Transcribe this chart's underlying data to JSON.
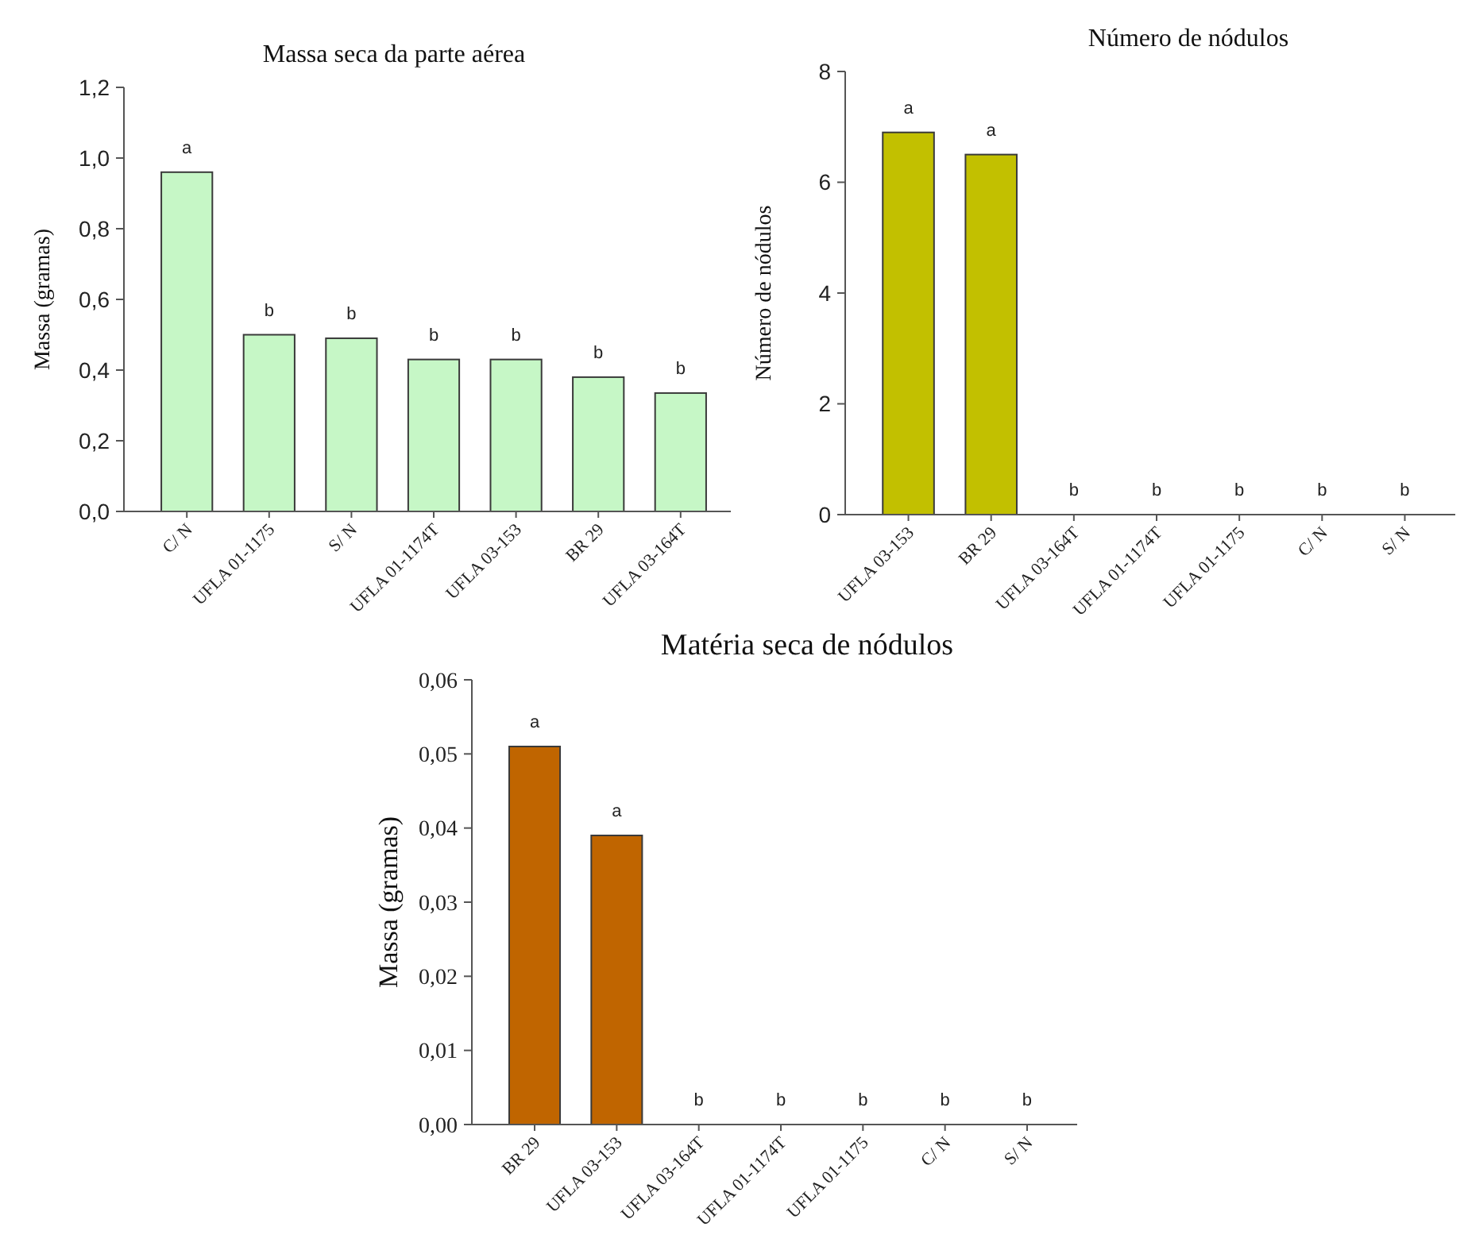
{
  "chart_data": [
    {
      "type": "bar",
      "title": "Massa seca  da parte aérea",
      "ylabel": "Massa (gramas)",
      "categories": [
        "C/ N",
        "UFLA 01-1175",
        "S/ N",
        "UFLA 01-1174T",
        "UFLA 03-153",
        "BR 29",
        "UFLA 03-164T"
      ],
      "values": [
        0.96,
        0.5,
        0.49,
        0.43,
        0.43,
        0.38,
        0.335
      ],
      "color": "#c6f7c6",
      "value_labels": [
        "a",
        "b",
        "b",
        "b",
        "b",
        "b",
        "b"
      ],
      "ylim": [
        0,
        1.2
      ],
      "yticks": [
        {
          "value": 0,
          "label": "0,0"
        },
        {
          "value": 0.2,
          "label": "0,2"
        },
        {
          "value": 0.4,
          "label": "0,4"
        },
        {
          "value": 0.6,
          "label": "0,6"
        },
        {
          "value": 0.8,
          "label": "0,8"
        },
        {
          "value": 1,
          "label": "1,0"
        },
        {
          "value": 1.2,
          "label": "1,2"
        }
      ],
      "grid": false
    },
    {
      "type": "bar",
      "title": "Número de nódulos",
      "ylabel": "Número de nódulos",
      "categories": [
        "UFLA 03-153",
        "BR 29",
        "UFLA 03-164T",
        "UFLA 01-1174T",
        "UFLA 01-1175",
        "C/ N",
        "S/ N"
      ],
      "values": [
        6.9,
        6.5,
        0,
        0,
        0,
        0,
        0
      ],
      "color": "#c2c000",
      "value_labels": [
        "a",
        "a",
        "b",
        "b",
        "b",
        "b",
        "b"
      ],
      "ylim": [
        0,
        8
      ],
      "yticks": [
        0,
        2,
        4,
        6,
        8
      ],
      "grid": false
    },
    {
      "type": "bar",
      "title": "Matéria seca de nódulos",
      "ylabel": "Massa (gramas)",
      "categories": [
        "BR 29",
        "UFLA 03-153",
        "UFLA 03-164T",
        "UFLA 01-1174T",
        "UFLA 01-1175",
        "C/ N",
        "S/ N"
      ],
      "values": [
        0.051,
        0.039,
        0,
        0,
        0,
        0,
        0
      ],
      "color": "#c06500",
      "value_labels": [
        "a",
        "a",
        "b",
        "b",
        "b",
        "b",
        "b"
      ],
      "ylim": [
        0,
        0.06
      ],
      "yticks": [
        {
          "value": 0,
          "label": "0,00"
        },
        {
          "value": 0.01,
          "label": "0,01"
        },
        {
          "value": 0.02,
          "label": "0,02"
        },
        {
          "value": 0.03,
          "label": "0,03"
        },
        {
          "value": 0.04,
          "label": "0,04"
        },
        {
          "value": 0.05,
          "label": "0,05"
        },
        {
          "value": 0.06,
          "label": "0,06"
        }
      ],
      "grid": false
    }
  ]
}
